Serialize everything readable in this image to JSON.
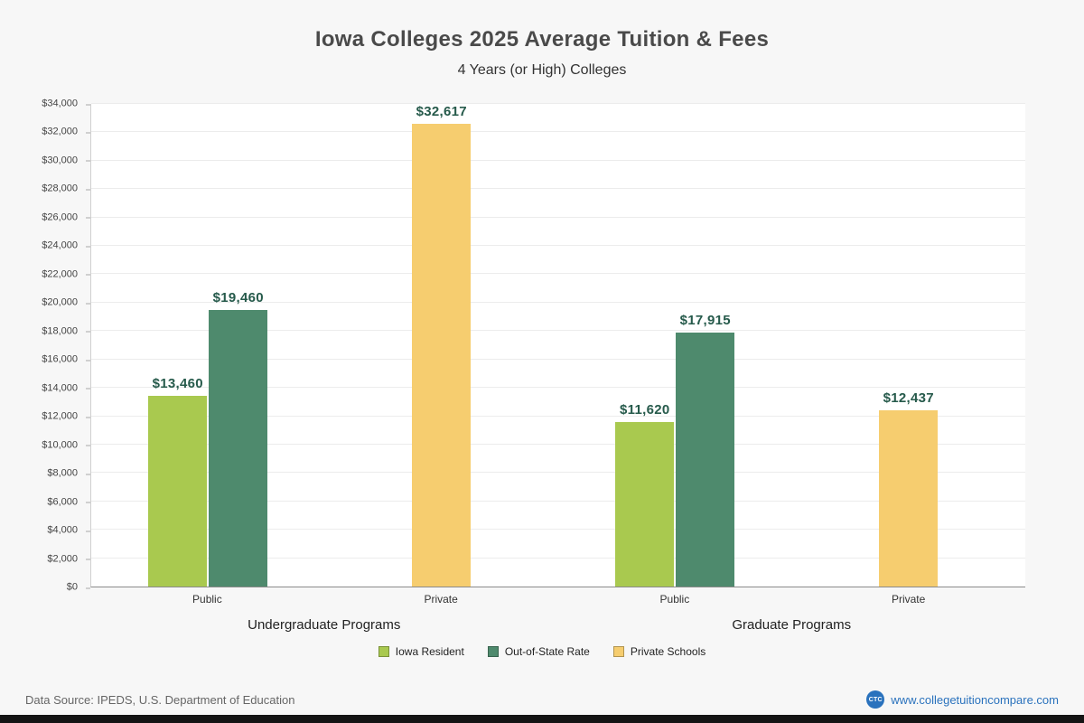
{
  "chart_data": {
    "type": "bar",
    "title": "Iowa Colleges 2025 Average Tuition & Fees",
    "subtitle": "4 Years (or High)  Colleges",
    "ylim": [
      0,
      34000
    ],
    "ytick_step": 2000,
    "ytick_prefix": "$",
    "grid": true,
    "legend_position": "bottom",
    "groups": [
      {
        "label": "Undergraduate Programs",
        "categories": [
          {
            "label": "Public",
            "bars": [
              {
                "series": "Iowa Resident",
                "value": 13460,
                "label": "$13,460"
              },
              {
                "series": "Out-of-State Rate",
                "value": 19460,
                "label": "$19,460"
              }
            ]
          },
          {
            "label": "Private",
            "bars": [
              {
                "series": "Private Schools",
                "value": 32617,
                "label": "$32,617"
              }
            ]
          }
        ]
      },
      {
        "label": "Graduate Programs",
        "categories": [
          {
            "label": "Public",
            "bars": [
              {
                "series": "Iowa Resident",
                "value": 11620,
                "label": "$11,620"
              },
              {
                "series": "Out-of-State Rate",
                "value": 17915,
                "label": "$17,915"
              }
            ]
          },
          {
            "label": "Private",
            "bars": [
              {
                "series": "Private Schools",
                "value": 12437,
                "label": "$12,437"
              }
            ]
          }
        ]
      }
    ],
    "series_colors": {
      "Iowa Resident": "#a9c94f",
      "Out-of-State Rate": "#4e8a6d",
      "Private Schools": "#f6cd6f"
    },
    "legend": [
      {
        "label": "Iowa Resident",
        "color": "#a9c94f"
      },
      {
        "label": "Out-of-State Rate",
        "color": "#4e8a6d"
      },
      {
        "label": "Private Schools",
        "color": "#f6cd6f"
      }
    ],
    "value_label_color": "#265a4b"
  },
  "footer": {
    "data_source": "Data Source: IPEDS, U.S. Department of Education",
    "logo_text": "CTC",
    "site": "www.collegetuitioncompare.com"
  }
}
